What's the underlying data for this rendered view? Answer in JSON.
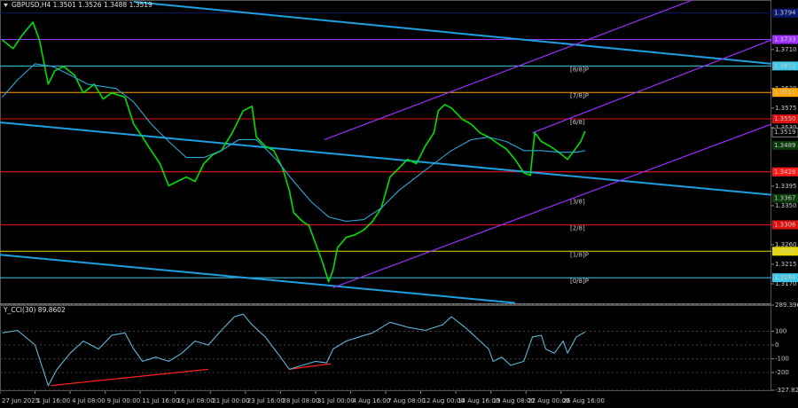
{
  "chart_data": [
    {
      "type": "line",
      "title": "GBPUSD,H4  1.3501 1.3526 1.3488 1.3519",
      "xlim": [
        0,
        352
      ],
      "xticks": [
        {
          "value": 0,
          "label": "27 Jun 2025"
        },
        {
          "value": 16,
          "label": "1 Jul 16:00"
        },
        {
          "value": 32,
          "label": "4 Jul 08:00"
        },
        {
          "value": 48,
          "label": "9 Jul 00:00"
        },
        {
          "value": 64,
          "label": "11 Jul 16:00"
        },
        {
          "value": 80,
          "label": "16 Jul 08:00"
        },
        {
          "value": 96,
          "label": "21 Jul 00:00"
        },
        {
          "value": 112,
          "label": "23 Jul 16:00"
        },
        {
          "value": 128,
          "label": "28 Jul 08:00"
        },
        {
          "value": 144,
          "label": "31 Jul 00:00"
        },
        {
          "value": 160,
          "label": "4 Aug 16:00"
        },
        {
          "value": 176,
          "label": "7 Aug 08:00"
        },
        {
          "value": 192,
          "label": "12 Aug 00:00"
        },
        {
          "value": 208,
          "label": "14 Aug 16:00"
        },
        {
          "value": 224,
          "label": "19 Aug 08:00"
        },
        {
          "value": 240,
          "label": "22 Aug 00:00"
        },
        {
          "value": 256,
          "label": "26 Aug 16:00"
        }
      ],
      "ylim": [
        1.3125,
        1.3824
      ],
      "yticks": [
        {
          "value": 1.317,
          "label": "1.3170"
        },
        {
          "value": 1.3215,
          "label": "1.3215"
        },
        {
          "value": 1.326,
          "label": "1.3260"
        },
        {
          "value": 1.335,
          "label": "1.3350"
        },
        {
          "value": 1.3395,
          "label": "1.3395"
        },
        {
          "value": 1.353,
          "label": "1.3530"
        },
        {
          "value": 1.3575,
          "label": "1.3575"
        },
        {
          "value": 1.362,
          "label": "1.3620"
        },
        {
          "value": 1.371,
          "label": "1.3710"
        }
      ],
      "series": [
        {
          "color": "#00e000",
          "x": [
            1,
            6,
            10,
            15,
            18,
            22,
            25,
            29,
            34,
            38,
            43,
            47,
            51,
            57,
            61,
            65,
            69,
            73,
            77,
            81,
            85,
            89,
            93,
            97,
            101,
            106,
            111,
            115,
            117,
            121,
            125,
            129,
            132,
            134,
            138,
            141,
            144,
            147,
            150,
            152,
            154,
            158,
            162,
            166,
            170,
            174,
            178,
            182,
            186,
            190,
            194,
            198,
            200,
            203,
            206,
            211,
            215,
            219,
            223,
            227,
            231,
            235,
            239,
            242,
            244,
            247,
            251,
            255,
            259,
            262,
            265,
            267
          ],
          "values": [
            1.3732,
            1.3712,
            1.3742,
            1.3773,
            1.3732,
            1.363,
            1.3661,
            1.3671,
            1.3651,
            1.361,
            1.363,
            1.3596,
            1.361,
            1.36,
            1.3538,
            1.3508,
            1.3477,
            1.3447,
            1.3396,
            1.3406,
            1.3416,
            1.3406,
            1.3447,
            1.3467,
            1.3477,
            1.3518,
            1.3569,
            1.3579,
            1.3508,
            1.3487,
            1.3477,
            1.3436,
            1.3385,
            1.3334,
            1.3314,
            1.3304,
            1.3263,
            1.3222,
            1.3175,
            1.3202,
            1.3253,
            1.3277,
            1.3283,
            1.3294,
            1.3314,
            1.3345,
            1.3416,
            1.3436,
            1.3457,
            1.3447,
            1.3487,
            1.3518,
            1.3569,
            1.3583,
            1.3575,
            1.3549,
            1.3538,
            1.3518,
            1.3508,
            1.3494,
            1.3481,
            1.3457,
            1.3426,
            1.342,
            1.3518,
            1.3498,
            1.3487,
            1.3473,
            1.3457,
            1.3477,
            1.3498,
            1.3522
          ]
        },
        {
          "color": "#2aa8d8",
          "x": [
            1,
            8,
            16,
            24,
            32,
            40,
            53,
            61,
            69,
            77,
            85,
            93,
            101,
            109,
            117,
            126,
            134,
            142,
            150,
            158,
            166,
            174,
            182,
            190,
            198,
            206,
            215,
            223,
            231,
            239,
            247,
            255,
            263,
            267
          ],
          "values": [
            1.36,
            1.364,
            1.3677,
            1.3671,
            1.3651,
            1.363,
            1.362,
            1.3589,
            1.3538,
            1.3498,
            1.3461,
            1.3461,
            1.3477,
            1.3502,
            1.3502,
            1.3457,
            1.3406,
            1.3359,
            1.3324,
            1.3314,
            1.3318,
            1.3345,
            1.3385,
            1.3416,
            1.3447,
            1.3477,
            1.3502,
            1.3508,
            1.3498,
            1.3477,
            1.3477,
            1.3473,
            1.3473,
            1.3477
          ]
        }
      ],
      "trend_lines": [
        {
          "color": "#1e9fe0",
          "x": [
            61,
            352
          ],
          "y": [
            1.382,
            1.3677
          ]
        },
        {
          "color": "#1e9fe0",
          "x": [
            0,
            352
          ],
          "y": [
            1.3542,
            1.3375
          ]
        },
        {
          "color": "#1e9fe0",
          "x": [
            0,
            235
          ],
          "y": [
            1.3237,
            1.3126
          ]
        },
        {
          "color": "#9b30ff",
          "x": [
            148,
            316
          ],
          "y": [
            1.3502,
            1.3824
          ]
        },
        {
          "color": "#9b30ff",
          "x": [
            243,
            352
          ],
          "y": [
            1.3518,
            1.3732
          ]
        },
        {
          "color": "#9b30ff",
          "x": [
            152,
            352
          ],
          "y": [
            1.3161,
            1.3538
          ]
        }
      ],
      "levels": [
        {
          "price": 1.3794,
          "line_color": "#0a1a6e",
          "box_color": "#0a1a6e",
          "text_color": "#ffffff"
        },
        {
          "price": 1.3733,
          "line_color": "#9b30ff",
          "box_color": "#9b30ff",
          "text_color": "#ffffff"
        },
        {
          "price": 1.3672,
          "line_color": "#3fc8e8",
          "box_color": "#3fc8e8",
          "text_color": "#000000",
          "tag": "[8/8]P"
        },
        {
          "price": 1.3611,
          "line_color": "#ffa500",
          "box_color": "#ffa500",
          "text_color": "#000000",
          "tag": "[7/8]P"
        },
        {
          "price": 1.355,
          "label": "1.3550",
          "line_color": "#e01010",
          "box_color": "#e01010",
          "text_color": "#ffffff",
          "tag": "[6/8]"
        },
        {
          "price": 1.3519,
          "box_color": "#000000",
          "text_color": "#ffffff"
        },
        {
          "price": 1.3489,
          "box_color": "#0b3d0b",
          "text_color": "#7fdc7f"
        },
        {
          "price": 1.3428,
          "line_color": "#ff1a1a",
          "box_color": "#ff1a1a",
          "text_color": "#ffffff"
        },
        {
          "price": 1.3367,
          "box_color": "#0b3d0b",
          "text_color": "#7fdc7f",
          "tag": "[3/8]"
        },
        {
          "price": 1.3306,
          "line_color": "#e01010",
          "box_color": "#e01010",
          "text_color": "#ffffff",
          "tag": "[2/8]"
        },
        {
          "price": 1.3245,
          "line_color": "#e8d800",
          "box_color": "#e8d800",
          "text_color": "#000000",
          "tag": "[1/8]P"
        },
        {
          "price": 1.3184,
          "line_color": "#3fc8e8",
          "box_color": "#3fc8e8",
          "text_color": "#000000",
          "tag": "[0/8]P"
        }
      ]
    },
    {
      "type": "line",
      "title": "Y_CCI(30) 89.8602",
      "xlim": [
        0,
        352
      ],
      "ylim": [
        -327.8232,
        289.3969
      ],
      "yticks": [
        -327.8232,
        -200,
        -100,
        0,
        100,
        289.3969
      ],
      "series": [
        {
          "color": "#5fb6d6",
          "x": [
            1,
            8,
            16,
            22,
            26,
            32,
            38,
            45,
            51,
            57,
            61,
            65,
            71,
            77,
            83,
            89,
            95,
            101,
            107,
            111,
            115,
            121,
            128,
            132,
            138,
            144,
            149,
            152,
            158,
            164,
            170,
            178,
            186,
            194,
            202,
            206,
            213,
            219,
            223,
            225,
            229,
            233,
            239,
            243,
            247,
            249,
            253,
            257,
            259,
            263,
            267
          ],
          "values": [
            88,
            106,
            0,
            -294,
            -176,
            -59,
            29,
            -29,
            71,
            88,
            -29,
            -118,
            -88,
            -118,
            -59,
            29,
            0,
            106,
            206,
            224,
            147,
            59,
            -88,
            -176,
            -147,
            -118,
            -129,
            -29,
            29,
            59,
            88,
            165,
            129,
            106,
            147,
            206,
            118,
            29,
            -29,
            -118,
            -88,
            -147,
            -118,
            59,
            71,
            -29,
            -59,
            29,
            -59,
            59,
            94
          ]
        }
      ],
      "trend_lines": [
        {
          "color": "#ff2020",
          "x": [
            23,
            95
          ],
          "y": [
            -294,
            -176
          ]
        },
        {
          "color": "#ff2020",
          "x": [
            132,
            151
          ],
          "y": [
            -176,
            -135
          ]
        }
      ]
    }
  ]
}
